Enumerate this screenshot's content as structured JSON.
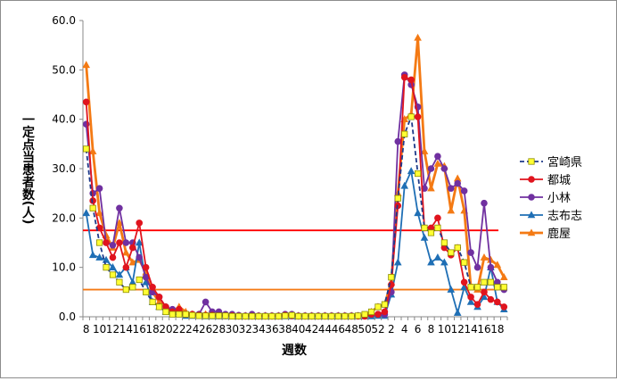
{
  "chart_data": {
    "type": "line",
    "title": "",
    "xlabel": "週数",
    "ylabel": "一定点当患者数(人)",
    "ylim": [
      0,
      60
    ],
    "yticks": [
      "0.0",
      "10.0",
      "20.0",
      "30.0",
      "40.0",
      "50.0",
      "60.0"
    ],
    "x": [
      "8",
      "9",
      "10",
      "11",
      "12",
      "13",
      "14",
      "15",
      "16",
      "17",
      "18",
      "19",
      "20",
      "21",
      "22",
      "23",
      "24",
      "25",
      "26",
      "27",
      "28",
      "29",
      "30",
      "31",
      "32",
      "33",
      "34",
      "35",
      "36",
      "37",
      "38",
      "39",
      "40",
      "41",
      "42",
      "43",
      "44",
      "45",
      "46",
      "47",
      "48",
      "49",
      "50",
      "51",
      "52",
      "1",
      "2",
      "3",
      "4",
      "5",
      "6",
      "7",
      "8",
      "9",
      "10",
      "11",
      "12",
      "13",
      "14",
      "15",
      "16",
      "17",
      "18",
      "19"
    ],
    "xtick_labels": [
      "8",
      "",
      "10",
      "",
      "12",
      "",
      "14",
      "",
      "16",
      "",
      "18",
      "",
      "20",
      "",
      "22",
      "",
      "24",
      "",
      "26",
      "",
      "28",
      "",
      "30",
      "",
      "32",
      "",
      "34",
      "",
      "36",
      "",
      "38",
      "",
      "40",
      "",
      "42",
      "",
      "44",
      "",
      "46",
      "",
      "48",
      "",
      "50",
      "",
      "52",
      "",
      "2",
      "",
      "4",
      "",
      "6",
      "",
      "8",
      "",
      "10",
      "",
      "12",
      "",
      "14",
      "",
      "16",
      "",
      "18",
      ""
    ],
    "grid": false,
    "legend_position": "right",
    "reference_lines": [
      {
        "value": 17.5,
        "color": "#ff0000"
      },
      {
        "value": 5.5,
        "color": "#f47a14"
      }
    ],
    "series": [
      {
        "name": "宮崎県",
        "color": "#1f3a8a",
        "marker": "square",
        "dashed": true,
        "values": [
          34,
          22,
          15,
          10,
          8.5,
          7,
          5.5,
          6,
          7.5,
          5,
          3,
          2,
          1,
          0.5,
          0.5,
          0.5,
          0.3,
          0.2,
          0.2,
          0.2,
          0.2,
          0.2,
          0.1,
          0.1,
          0.1,
          0.1,
          0.1,
          0.1,
          0.1,
          0.1,
          0.2,
          0.3,
          0.1,
          0.1,
          0.1,
          0.1,
          0.1,
          0.1,
          0.1,
          0.1,
          0.1,
          0.2,
          0.5,
          1,
          2,
          2.5,
          8,
          24,
          37,
          40.5,
          29,
          18,
          17,
          18,
          15,
          13,
          14,
          11,
          6,
          6,
          7,
          7,
          6,
          6
        ]
      },
      {
        "name": "都城",
        "color": "#e0141e",
        "marker": "circle",
        "dashed": false,
        "values": [
          43.5,
          23.5,
          18,
          15,
          12,
          15,
          10,
          14,
          19,
          10,
          6,
          4,
          2,
          1,
          1.5,
          0.5,
          0.5,
          0.3,
          0.3,
          0.3,
          0.2,
          0.2,
          0.2,
          0.1,
          0.1,
          0.1,
          0.1,
          0.1,
          0.1,
          0.1,
          0.3,
          0.2,
          0.1,
          0.1,
          0.1,
          0.1,
          0.1,
          0.1,
          0.1,
          0.1,
          0.1,
          0.1,
          0.1,
          0.5,
          0.5,
          1,
          6.5,
          22.5,
          48.5,
          48,
          40.5,
          18,
          18,
          20,
          14,
          12.5,
          14,
          7,
          4,
          2.5,
          5,
          3.5,
          3,
          2
        ]
      },
      {
        "name": "小林",
        "color": "#7030a0",
        "marker": "circle",
        "dashed": false,
        "values": [
          39,
          25,
          26,
          15,
          14.5,
          22,
          15,
          15,
          12,
          8,
          5,
          4,
          2,
          1.5,
          1,
          0.5,
          0.5,
          0.5,
          3,
          1,
          1,
          0.5,
          0.5,
          0.3,
          0.2,
          0.5,
          0.2,
          0.2,
          0.2,
          0.2,
          0.5,
          0.5,
          0.2,
          0.2,
          0.2,
          0.2,
          0.2,
          0.2,
          0.2,
          0.2,
          0.2,
          0.2,
          0.2,
          0.5,
          0.5,
          0.5,
          5,
          35.5,
          49,
          47,
          42.5,
          26,
          30,
          32.5,
          30,
          26,
          27,
          25.5,
          13,
          10,
          23,
          10,
          7,
          5.5
        ]
      },
      {
        "name": "志布志",
        "color": "#1f6fb5",
        "marker": "triangle",
        "dashed": false,
        "values": [
          21,
          12.5,
          12,
          11.5,
          10,
          8.5,
          10,
          7,
          15,
          7,
          3,
          2,
          1,
          0.5,
          0.5,
          0.2,
          0.2,
          0.2,
          0.1,
          0.1,
          0.1,
          0.1,
          0.1,
          0.1,
          0.1,
          0.1,
          0.1,
          0.1,
          0.1,
          0.1,
          0.1,
          0.1,
          0.1,
          0.1,
          0.1,
          0.1,
          0.1,
          0.1,
          0.1,
          0.1,
          0.1,
          0.1,
          0.1,
          0.1,
          0.2,
          0.2,
          4.5,
          11,
          26.5,
          29.5,
          21,
          16,
          11,
          12,
          11,
          5.5,
          0.8,
          6,
          3,
          2,
          4,
          10,
          3,
          1.5
        ]
      },
      {
        "name": "鹿屋",
        "color": "#f47a14",
        "marker": "triangle",
        "dashed": false,
        "values": [
          51,
          33.5,
          21,
          16.5,
          14,
          19,
          13,
          11,
          11.5,
          9,
          5,
          3,
          2,
          1,
          2,
          1,
          0.5,
          0.5,
          0.5,
          0.5,
          0.3,
          0.3,
          0.2,
          0.2,
          0.2,
          0.2,
          0.2,
          0.2,
          0.2,
          0.2,
          0.3,
          0.3,
          0.2,
          0.2,
          0.2,
          0.2,
          0.2,
          0.2,
          0.2,
          0.2,
          0.2,
          0.2,
          0.3,
          1,
          2,
          2.5,
          7,
          25,
          40,
          41,
          56.5,
          33.5,
          26,
          31,
          30.5,
          21.5,
          28,
          21.5,
          6,
          5.5,
          12,
          11.5,
          10.5,
          8
        ]
      }
    ]
  }
}
